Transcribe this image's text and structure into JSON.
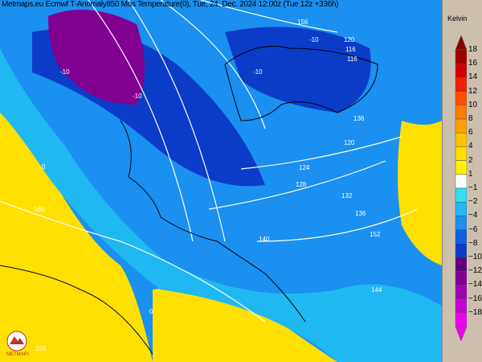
{
  "title": "Metmaps.eu Ecmwf T-Anomaly850 Mos Temperature(0), Tue, 24. Dec. 2024 12:00z (Tue 12z +336h)",
  "legend": {
    "unit": "Kelvin",
    "levels": [
      {
        "label": "18",
        "color": "#a00000"
      },
      {
        "label": "16",
        "color": "#d00000"
      },
      {
        "label": "14",
        "color": "#f02000"
      },
      {
        "label": "12",
        "color": "#ff5000"
      },
      {
        "label": "10",
        "color": "#ff7a00"
      },
      {
        "label": "8",
        "color": "#ffa000"
      },
      {
        "label": "6",
        "color": "#ffc400"
      },
      {
        "label": "4",
        "color": "#ffe000"
      },
      {
        "label": "2",
        "color": "#fff200"
      },
      {
        "label": "1",
        "color": "#ffffff"
      },
      {
        "label": "−1",
        "color": "#2ee0f0"
      },
      {
        "label": "−2",
        "color": "#20b8f0"
      },
      {
        "label": "−4",
        "color": "#1a90f0"
      },
      {
        "label": "−6",
        "color": "#1060e0"
      },
      {
        "label": "−8",
        "color": "#0a3cc8"
      },
      {
        "label": "−10",
        "color": "#600080"
      },
      {
        "label": "−12",
        "color": "#800090"
      },
      {
        "label": "−14",
        "color": "#a000b0"
      },
      {
        "label": "−16",
        "color": "#c800d8"
      },
      {
        "label": "−18",
        "color": "#f000f0"
      }
    ]
  },
  "contour_labels": [
    "-10",
    "-10",
    "-10",
    "-10",
    "160",
    "156",
    "156",
    "124",
    "120",
    "120",
    "116",
    "116",
    "128",
    "132",
    "136",
    "136",
    "140",
    "144",
    "0",
    "0",
    "152"
  ],
  "logo": "METMAPS"
}
